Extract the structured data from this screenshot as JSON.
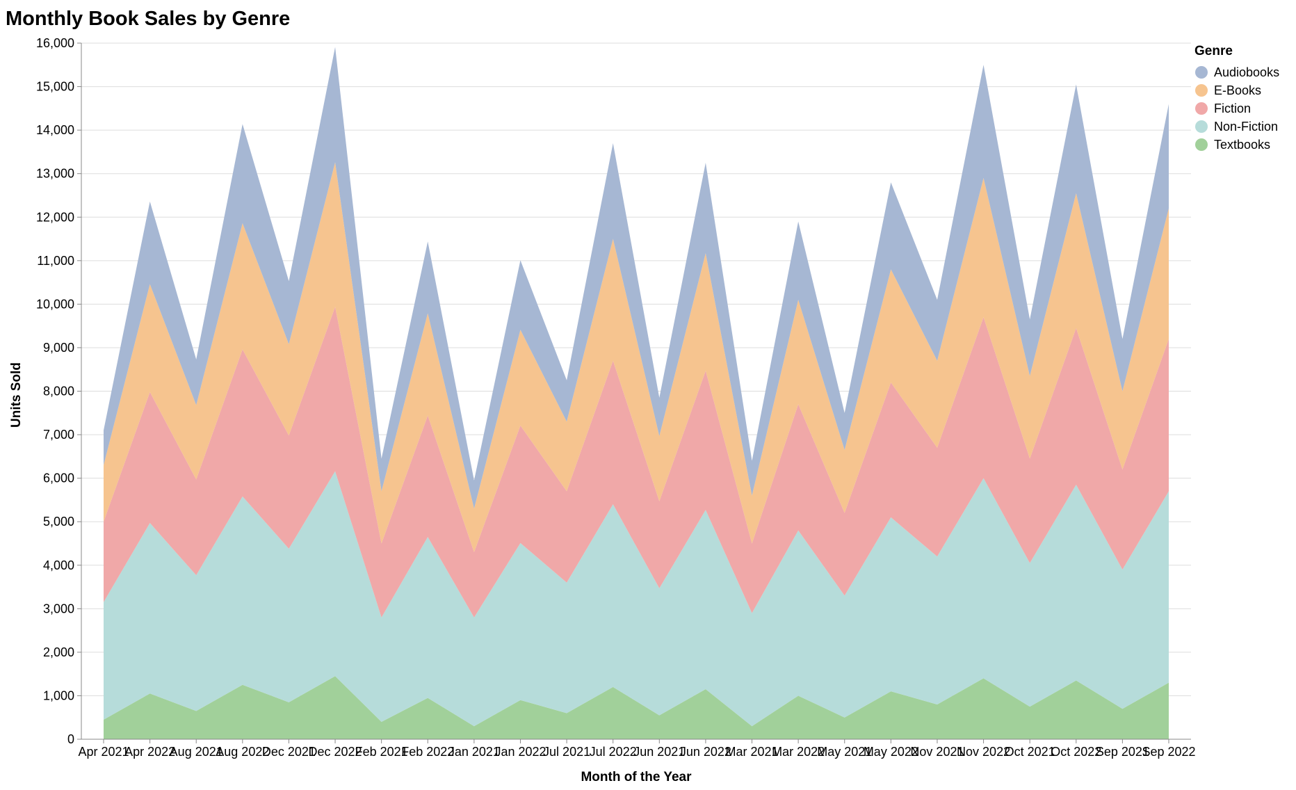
{
  "chart_data": {
    "type": "area",
    "stacked": true,
    "title": "Monthly Book Sales by Genre",
    "xlabel": "Month of the Year",
    "ylabel": "Units Sold",
    "ylim": [
      0,
      16000
    ],
    "yticks": [
      0,
      1000,
      2000,
      3000,
      4000,
      5000,
      6000,
      7000,
      8000,
      9000,
      10000,
      11000,
      12000,
      13000,
      14000,
      15000,
      16000
    ],
    "ytick_labels": [
      "0",
      "1,000",
      "2,000",
      "3,000",
      "4,000",
      "5,000",
      "6,000",
      "7,000",
      "8,000",
      "9,000",
      "10,000",
      "11,000",
      "12,000",
      "13,000",
      "14,000",
      "15,000",
      "16,000"
    ],
    "grid": true,
    "legend": {
      "title": "Genre",
      "position": "top-right"
    },
    "categories": [
      "Apr 2021",
      "Apr 2022",
      "Aug 2021",
      "Aug 2022",
      "Dec 2021",
      "Dec 2022",
      "Feb 2021",
      "Feb 2022",
      "Jan 2021",
      "Jan 2022",
      "Jul 2021",
      "Jul 2022",
      "Jun 2021",
      "Jun 2022",
      "Mar 2021",
      "Mar 2022",
      "May 2021",
      "May 2022",
      "Nov 2021",
      "Nov 2022",
      "Oct 2021",
      "Oct 2022",
      "Sep 2021",
      "Sep 2022"
    ],
    "series": [
      {
        "name": "Textbooks",
        "color": "#a1d09a",
        "values": [
          450,
          1050,
          650,
          1250,
          850,
          1450,
          400,
          950,
          300,
          900,
          600,
          1200,
          550,
          1150,
          300,
          1000,
          500,
          1100,
          800,
          1400,
          750,
          1350,
          700,
          1300
        ]
      },
      {
        "name": "Non-Fiction",
        "color": "#b6dcda",
        "values": [
          2700,
          3920,
          3120,
          4330,
          3530,
          4710,
          2400,
          3700,
          2500,
          3610,
          3000,
          4200,
          2920,
          4120,
          2600,
          3800,
          2800,
          4000,
          3400,
          4600,
          3300,
          4500,
          3200,
          4400
        ]
      },
      {
        "name": "Fiction",
        "color": "#f0a8a8",
        "values": [
          1850,
          3010,
          2200,
          3380,
          2600,
          3780,
          1700,
          2790,
          1500,
          2700,
          2100,
          3300,
          2000,
          3200,
          1600,
          2900,
          1900,
          3100,
          2500,
          3700,
          2400,
          3600,
          2300,
          3500
        ]
      },
      {
        "name": "E-Books",
        "color": "#f6c48f",
        "values": [
          1300,
          2480,
          1710,
          2900,
          2100,
          3320,
          1200,
          2350,
          1000,
          2200,
          1600,
          2800,
          1500,
          2700,
          1100,
          2400,
          1450,
          2600,
          2000,
          3200,
          1900,
          3100,
          1800,
          3000
        ]
      },
      {
        "name": "Audiobooks",
        "color": "#a6b7d3",
        "values": [
          800,
          1900,
          1050,
          2280,
          1450,
          2650,
          750,
          1650,
          650,
          1600,
          950,
          2200,
          880,
          2080,
          800,
          1800,
          850,
          2000,
          1400,
          2600,
          1300,
          2500,
          1200,
          2400
        ]
      }
    ],
    "legend_order": [
      "Audiobooks",
      "E-Books",
      "Fiction",
      "Non-Fiction",
      "Textbooks"
    ]
  }
}
